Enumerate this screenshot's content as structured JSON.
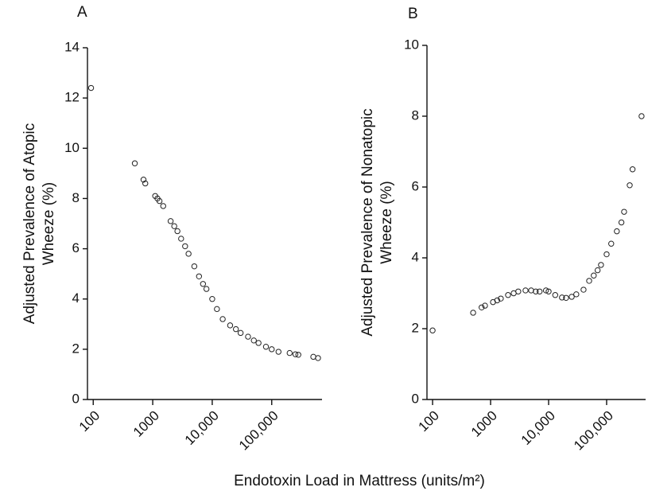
{
  "chart_data": [
    {
      "type": "scatter",
      "title": "A",
      "ylabel": [
        "Adjusted Prevalence of Atopic",
        "Wheeze (%)"
      ],
      "xlabel": "Endotoxin Load in Mattress (units/m²)",
      "xscale": "log",
      "color": "#222222",
      "xlim": [
        80,
        700000
      ],
      "ylim": [
        0,
        14
      ],
      "xticks": [
        100,
        1000,
        {
          "value": 10000,
          "label": "10,000"
        },
        {
          "value": 100000,
          "label": "100,000"
        }
      ],
      "yticks": [
        0,
        2,
        4,
        6,
        8,
        10,
        12,
        14
      ],
      "x": [
        92,
        500,
        700,
        750,
        1100,
        1200,
        1300,
        1500,
        2000,
        2300,
        2600,
        3000,
        3500,
        4000,
        5000,
        6000,
        7000,
        8000,
        10000,
        12000,
        15000,
        20000,
        25000,
        30000,
        40000,
        50000,
        60000,
        80000,
        100000,
        130000,
        200000,
        250000,
        280000,
        500000,
        600000
      ],
      "values": [
        12.4,
        9.4,
        8.75,
        8.6,
        8.1,
        8.0,
        7.9,
        7.7,
        7.1,
        6.9,
        6.7,
        6.4,
        6.1,
        5.8,
        5.3,
        4.9,
        4.6,
        4.4,
        4.0,
        3.6,
        3.2,
        2.95,
        2.8,
        2.65,
        2.5,
        2.35,
        2.25,
        2.1,
        2.0,
        1.9,
        1.85,
        1.8,
        1.78,
        1.7,
        1.65
      ]
    },
    {
      "type": "scatter",
      "title": "B",
      "ylabel": [
        "Adjusted Prevalence of Nonatopic",
        "Wheeze (%)"
      ],
      "xscale": "log",
      "color": "#222222",
      "xlim": [
        80,
        470000
      ],
      "ylim": [
        0,
        10
      ],
      "xticks": [
        100,
        1000,
        {
          "value": 10000,
          "label": "10,000"
        },
        {
          "value": 100000,
          "label": "100,000"
        }
      ],
      "yticks": [
        0,
        2,
        4,
        6,
        8,
        10
      ],
      "x": [
        100,
        500,
        700,
        800,
        1100,
        1300,
        1500,
        2000,
        2500,
        3000,
        4000,
        5000,
        6000,
        7000,
        9000,
        10000,
        13000,
        17000,
        20000,
        25000,
        30000,
        40000,
        50000,
        60000,
        70000,
        80000,
        100000,
        120000,
        150000,
        180000,
        200000,
        250000,
        280000,
        400000
      ],
      "values": [
        1.95,
        2.45,
        2.6,
        2.65,
        2.75,
        2.8,
        2.85,
        2.95,
        3.0,
        3.05,
        3.08,
        3.08,
        3.05,
        3.05,
        3.08,
        3.05,
        2.95,
        2.88,
        2.87,
        2.9,
        2.97,
        3.1,
        3.35,
        3.5,
        3.65,
        3.8,
        4.1,
        4.4,
        4.75,
        5.0,
        5.3,
        6.05,
        6.5,
        8.0
      ]
    }
  ]
}
